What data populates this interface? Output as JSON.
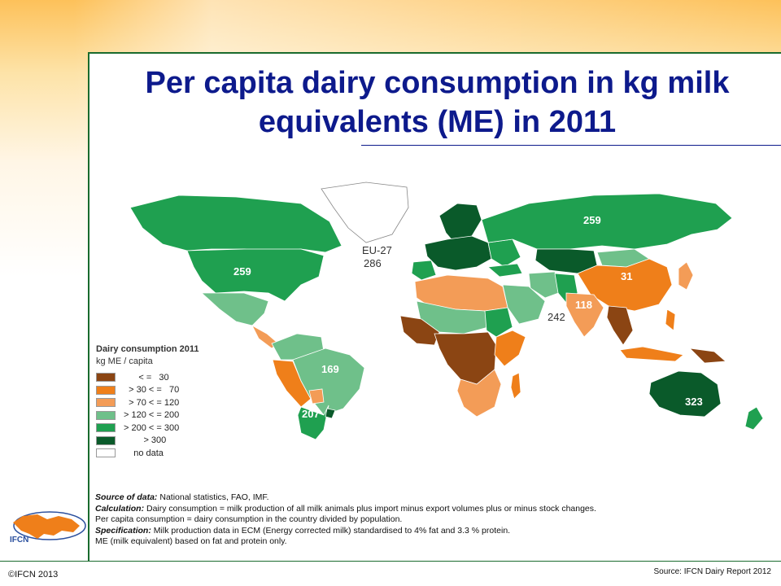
{
  "title": "Per capita dairy consumption in kg milk equivalents (ME) in 2011",
  "colors": {
    "le30": "#8b4513",
    "r30_70": "#ef7f1a",
    "r70_120": "#f39c57",
    "r120_200": "#6fc08a",
    "r200_300": "#1fa050",
    "gt300": "#0a5a2a",
    "nodata": "#ffffff",
    "title": "#0d1a8c",
    "frame": "#1a6b2e"
  },
  "map_labels": {
    "eu27_name": "EU-27",
    "eu27_value": "286",
    "north_america": "259",
    "russia": "259",
    "china": "31",
    "india": "118",
    "pakistan": "242",
    "brazil": "169",
    "argentina": "207",
    "australia": "323"
  },
  "legend": {
    "title": "Dairy consumption 2011",
    "unit": "kg ME / capita",
    "items": [
      {
        "label": "      < =   30",
        "color": "#8b4513"
      },
      {
        "label": "  > 30 < =   70",
        "color": "#ef7f1a"
      },
      {
        "label": "  > 70 < = 120",
        "color": "#f39c57"
      },
      {
        "label": "> 120 < = 200",
        "color": "#6fc08a"
      },
      {
        "label": "> 200 < = 300",
        "color": "#1fa050"
      },
      {
        "label": "        > 300",
        "color": "#0a5a2a"
      },
      {
        "label": "    no data",
        "color": "#ffffff"
      }
    ]
  },
  "notes": {
    "source_label": "Source of data:",
    "source_text": " National statistics, FAO, IMF.",
    "calc_label": "Calculation:",
    "calc_text": " Dairy consumption = milk production of all milk animals plus import minus export volumes plus or minus stock changes.",
    "calc_text2": "Per capita consumption = dairy consumption in the country divided by population.",
    "spec_label": "Specification:",
    "spec_text": " Milk production data in ECM (Energy corrected milk) standardised to 4% fat and 3.3 % protein.",
    "spec_text2": "ME (milk equivalent) based on fat and protein only."
  },
  "logo": {
    "text": "IFCN"
  },
  "footer": {
    "copyright": "©IFCN 2013",
    "source": "Source: IFCN Dairy Report 2012"
  }
}
